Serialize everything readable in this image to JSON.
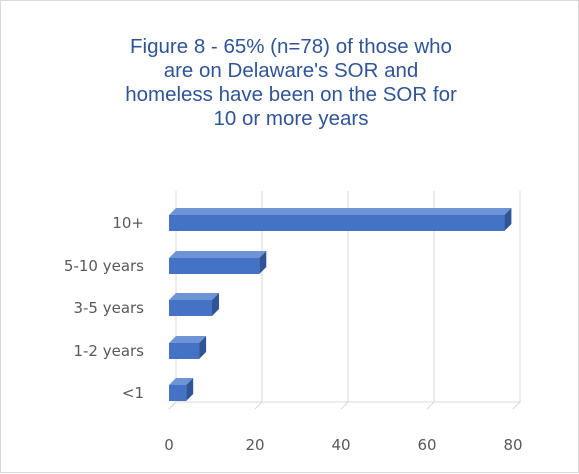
{
  "chart_data": {
    "type": "bar",
    "orientation": "horizontal",
    "title_lines": [
      "Figure 8 - 65% (n=78) of those who",
      "are on Delaware's SOR and",
      "homeless have been on the SOR for",
      "10 or more years"
    ],
    "categories": [
      "10+",
      "5-10 years",
      "3-5 years",
      "1-2 years",
      "<1"
    ],
    "values": [
      78,
      21,
      10,
      7,
      4
    ],
    "xlim": [
      0,
      80
    ],
    "xticks": [
      "0",
      "20",
      "40",
      "60",
      "80"
    ],
    "grid": true,
    "style": "3d",
    "bar_color": "#4472c4"
  }
}
